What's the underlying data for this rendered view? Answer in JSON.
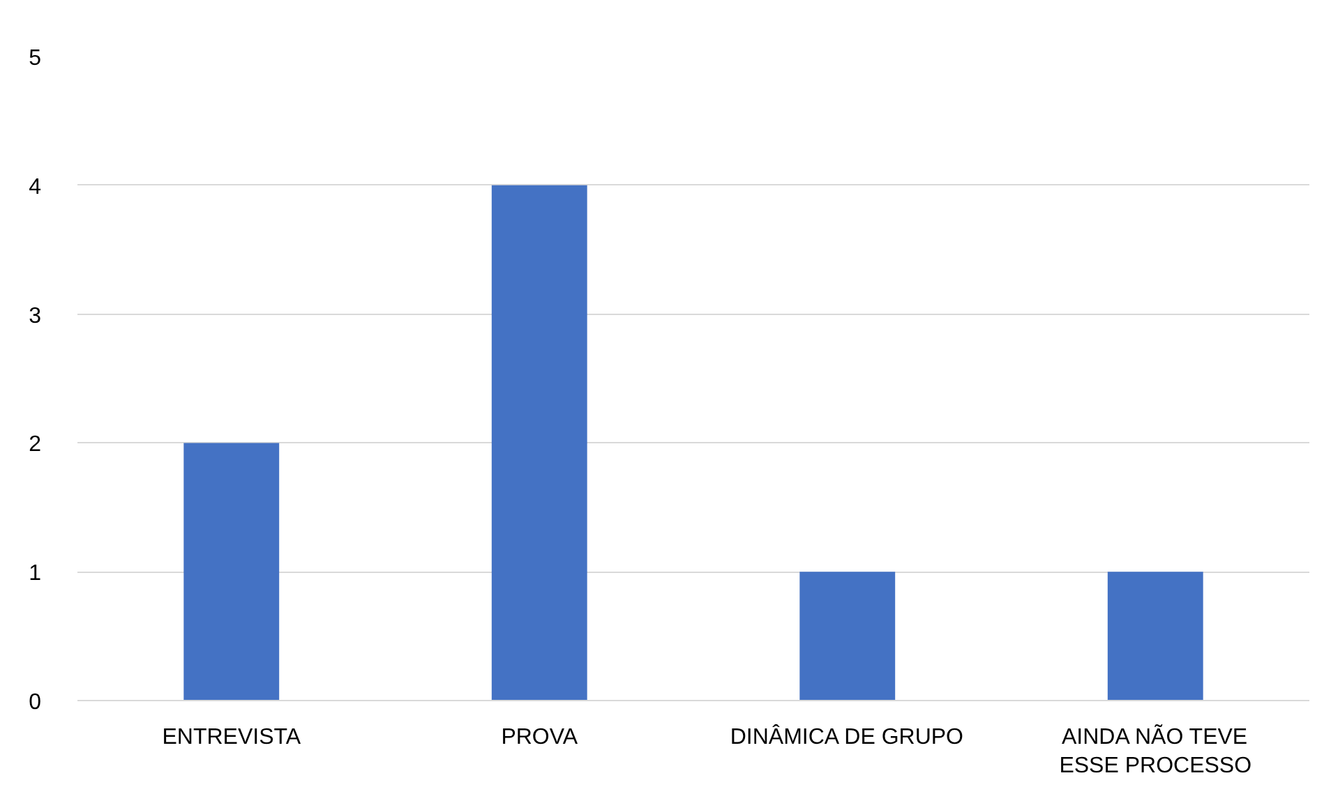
{
  "chart_data": {
    "type": "bar",
    "categories": [
      "ENTREVISTA",
      "PROVA",
      "DINÂMICA DE GRUPO",
      "AINDA NÃO TEVE ESSE PROCESSO"
    ],
    "values": [
      2,
      4,
      1,
      1
    ],
    "color": "#4472c4",
    "ylim": [
      0,
      5
    ],
    "yticks": [
      0,
      1,
      2,
      3,
      4,
      5
    ],
    "grid": "y"
  }
}
